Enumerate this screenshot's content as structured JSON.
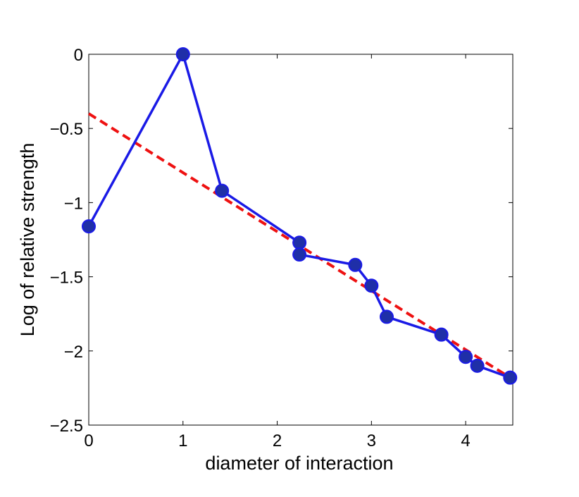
{
  "chart_data": {
    "type": "line",
    "xlabel": "diameter of interaction",
    "ylabel": "Log of relative strength",
    "xlim": [
      0,
      4.5
    ],
    "ylim": [
      -2.5,
      0
    ],
    "xticks": [
      0,
      1,
      2,
      3,
      4
    ],
    "yticks": [
      0,
      -0.5,
      -1,
      -1.5,
      -2,
      -2.5
    ],
    "xtick_labels": [
      "0",
      "1",
      "2",
      "3",
      "4"
    ],
    "ytick_labels": [
      "0",
      "−0.5",
      "−1",
      "−1.5",
      "−2",
      "−2.5"
    ],
    "grid": false,
    "series": [
      {
        "style": "solid-line-with-markers",
        "color": "#1a1ae6",
        "marker_fill": "#1f2fa8",
        "x": [
          0,
          1,
          1.414,
          2.236,
          2.236,
          2.828,
          3.0,
          3.162,
          3.742,
          4.0,
          4.123,
          4.472
        ],
        "y": [
          -1.16,
          0.0,
          -0.92,
          -1.27,
          -1.35,
          -1.42,
          -1.56,
          -1.77,
          -1.89,
          -2.04,
          -2.1,
          -2.18
        ]
      },
      {
        "style": "dashed-fit-line",
        "color": "#ee1111",
        "x": [
          0,
          4.472
        ],
        "y": [
          -0.4,
          -2.18
        ]
      }
    ]
  }
}
